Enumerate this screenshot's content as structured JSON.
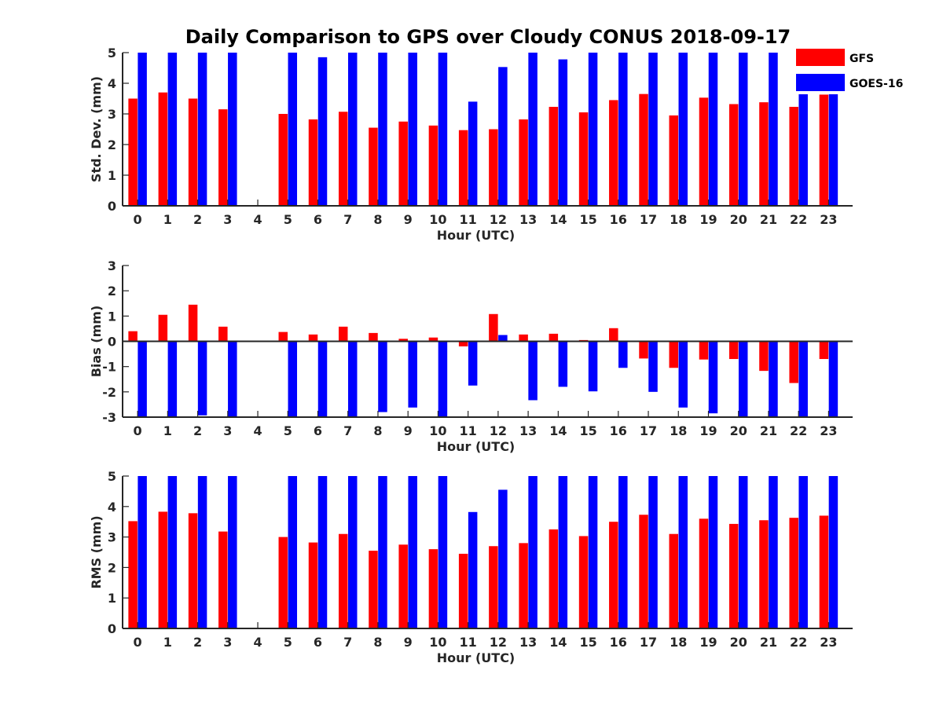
{
  "title": "Daily Comparison to GPS over Cloudy CONUS 2018-09-17",
  "legend": [
    {
      "name": "GFS",
      "color": "#ff0000"
    },
    {
      "name": "GOES-16",
      "color": "#0000ff"
    }
  ],
  "chart_data": [
    {
      "type": "bar",
      "ylabel": "Std. Dev. (mm)",
      "xlabel": "Hour (UTC)",
      "ylim": [
        0,
        5
      ],
      "yticks": [
        0,
        1,
        2,
        3,
        4,
        5
      ],
      "categories": [
        "0",
        "1",
        "2",
        "3",
        "4",
        "5",
        "6",
        "7",
        "8",
        "9",
        "10",
        "11",
        "12",
        "13",
        "14",
        "15",
        "16",
        "17",
        "18",
        "19",
        "20",
        "21",
        "22",
        "23"
      ],
      "series": [
        {
          "name": "GFS",
          "color": "#ff0000",
          "values": [
            3.5,
            3.7,
            3.5,
            3.15,
            null,
            3.0,
            2.82,
            3.07,
            2.55,
            2.75,
            2.62,
            2.47,
            2.5,
            2.82,
            3.23,
            3.05,
            3.45,
            3.65,
            2.95,
            3.53,
            3.32,
            3.38,
            3.23,
            3.63
          ]
        },
        {
          "name": "GOES-16",
          "color": "#0000ff",
          "values": [
            5,
            5,
            5,
            5,
            null,
            5,
            4.85,
            5,
            5,
            5,
            5,
            3.4,
            4.53,
            5,
            4.78,
            5,
            5,
            5,
            5,
            5,
            5,
            5,
            4.9,
            4.9
          ]
        }
      ]
    },
    {
      "type": "bar",
      "ylabel": "Bias (mm)",
      "xlabel": "Hour (UTC)",
      "ylim": [
        -3,
        3
      ],
      "yticks": [
        -3,
        -2,
        -1,
        0,
        1,
        2,
        3
      ],
      "categories": [
        "0",
        "1",
        "2",
        "3",
        "4",
        "5",
        "6",
        "7",
        "8",
        "9",
        "10",
        "11",
        "12",
        "13",
        "14",
        "15",
        "16",
        "17",
        "18",
        "19",
        "20",
        "21",
        "22",
        "23"
      ],
      "series": [
        {
          "name": "GFS",
          "color": "#ff0000",
          "values": [
            0.4,
            1.05,
            1.45,
            0.58,
            null,
            0.37,
            0.27,
            0.58,
            0.33,
            0.1,
            0.15,
            -0.2,
            1.08,
            0.27,
            0.3,
            0.05,
            0.52,
            -0.68,
            -1.05,
            -0.72,
            -0.7,
            -1.17,
            -1.65,
            -0.7
          ]
        },
        {
          "name": "GOES-16",
          "color": "#0000ff",
          "values": [
            -3,
            -3,
            -2.93,
            -3,
            null,
            -3,
            -3,
            -3,
            -2.8,
            -2.62,
            -3,
            -1.75,
            0.25,
            -2.33,
            -1.8,
            -1.98,
            -1.05,
            -2.0,
            -2.62,
            -2.85,
            -3,
            -3,
            -3,
            -3
          ]
        }
      ]
    },
    {
      "type": "bar",
      "ylabel": "RMS (mm)",
      "xlabel": "Hour (UTC)",
      "ylim": [
        0,
        5
      ],
      "yticks": [
        0,
        1,
        2,
        3,
        4,
        5
      ],
      "categories": [
        "0",
        "1",
        "2",
        "3",
        "4",
        "5",
        "6",
        "7",
        "8",
        "9",
        "10",
        "11",
        "12",
        "13",
        "14",
        "15",
        "16",
        "17",
        "18",
        "19",
        "20",
        "21",
        "22",
        "23"
      ],
      "series": [
        {
          "name": "GFS",
          "color": "#ff0000",
          "values": [
            3.52,
            3.83,
            3.78,
            3.18,
            null,
            3.0,
            2.82,
            3.1,
            2.55,
            2.75,
            2.6,
            2.45,
            2.7,
            2.8,
            3.25,
            3.03,
            3.5,
            3.73,
            3.1,
            3.6,
            3.43,
            3.55,
            3.63,
            3.7
          ]
        },
        {
          "name": "GOES-16",
          "color": "#0000ff",
          "values": [
            5,
            5,
            5,
            5,
            null,
            5,
            5,
            5,
            5,
            5,
            5,
            3.82,
            4.55,
            5,
            5,
            5,
            5,
            5,
            5,
            5,
            5,
            5,
            5,
            5
          ]
        }
      ]
    }
  ]
}
